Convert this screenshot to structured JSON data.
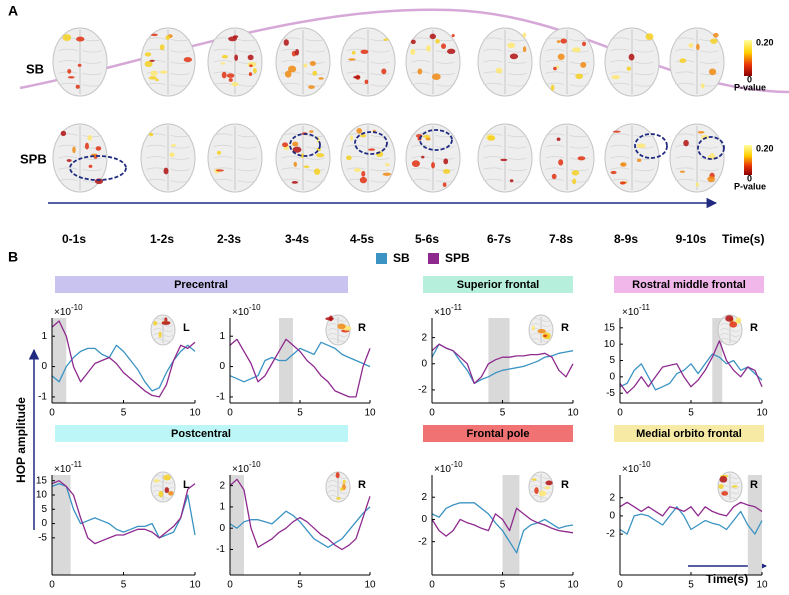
{
  "panel_a": {
    "label": "A",
    "rows": [
      "SB",
      "SPB"
    ],
    "colorbar": {
      "max": "0.20",
      "min": "0",
      "title": "P-value"
    },
    "time_labels": [
      "0-1s",
      "1-2s",
      "2-3s",
      "3-4s",
      "4-5s",
      "5-6s",
      "6-7s",
      "7-8s",
      "8-9s",
      "9-10s"
    ],
    "axis_label": "Time(s)"
  },
  "panel_b": {
    "label": "B",
    "y_label": "HOP amplitude",
    "x_label": "Time(s)",
    "groups": [
      "Precentral",
      "Superior frontal",
      "Rostral middle frontal",
      "Postcentral",
      "Frontal pole",
      "Medial orbito frontal"
    ]
  },
  "chart_data": [
    {
      "type": "line",
      "side": "L",
      "scale_base": "×10",
      "scale_exponent": "-10",
      "highlight": [
        0,
        1
      ],
      "x": [
        0,
        0.5,
        1,
        1.5,
        2,
        2.5,
        3,
        3.5,
        4,
        4.5,
        5,
        5.5,
        6,
        6.5,
        7,
        7.5,
        8,
        8.5,
        9,
        9.5,
        10
      ],
      "xlim": [
        0,
        10
      ],
      "xticks": [
        0,
        5,
        10
      ],
      "ylim": [
        -1.2,
        1.6
      ],
      "yticks": [
        -1,
        0,
        1
      ],
      "series": [
        {
          "name": "SB",
          "color": "#3a93c3",
          "values": [
            -0.3,
            -0.5,
            0,
            0.3,
            0.5,
            0.6,
            0.6,
            0.4,
            0.3,
            0.7,
            0.5,
            0.2,
            -0.1,
            -0.5,
            -0.8,
            -0.7,
            -0.2,
            0.2,
            0.5,
            0.7,
            0.5
          ]
        },
        {
          "name": "SPB",
          "color": "#8e2a8e",
          "values": [
            1.3,
            1.5,
            1.0,
            0,
            -0.5,
            -0.2,
            0.1,
            0.2,
            0.3,
            0.1,
            -0.2,
            -0.4,
            -0.6,
            -0.8,
            -0.95,
            -1.0,
            -0.6,
            0.2,
            0.7,
            0.6,
            0.8
          ]
        }
      ]
    },
    {
      "type": "line",
      "side": "R",
      "scale_base": "×10",
      "scale_exponent": "-10",
      "highlight": [
        3.5,
        4.5
      ],
      "x": [
        0,
        0.5,
        1,
        1.5,
        2,
        2.5,
        3,
        3.5,
        4,
        4.5,
        5,
        5.5,
        6,
        6.5,
        7,
        7.5,
        8,
        8.5,
        9,
        9.5,
        10
      ],
      "xlim": [
        0,
        10
      ],
      "xticks": [
        0,
        5,
        10
      ],
      "ylim": [
        -1.2,
        1.6
      ],
      "yticks": [
        -1,
        0,
        1
      ],
      "series": [
        {
          "color": "#3a93c3",
          "values": [
            -0.3,
            -0.4,
            -0.5,
            -0.4,
            -0.3,
            0.2,
            0.3,
            0.2,
            0.2,
            0.4,
            0.6,
            0.5,
            0.4,
            0.8,
            0.7,
            0.6,
            0.4,
            0.3,
            0.2,
            0.1,
            0
          ]
        },
        {
          "color": "#8e2a8e",
          "values": [
            0.7,
            0.9,
            0.5,
            0.1,
            -0.5,
            -0.3,
            0.1,
            0.5,
            0.9,
            0.7,
            0.5,
            0.2,
            0,
            -0.3,
            -0.5,
            -0.8,
            -0.9,
            -1.0,
            -1.0,
            0,
            0.6
          ]
        }
      ]
    },
    {
      "type": "line",
      "side": "R",
      "scale_base": "×10",
      "scale_exponent": "-11",
      "highlight": [
        4,
        5.5
      ],
      "x": [
        0,
        0.5,
        1,
        1.5,
        2,
        2.5,
        3,
        3.5,
        4,
        4.5,
        5,
        5.5,
        6,
        6.5,
        7,
        7.5,
        8,
        8.5,
        9,
        9.5,
        10
      ],
      "xlim": [
        0,
        10
      ],
      "xticks": [
        0,
        5,
        10
      ],
      "ylim": [
        -3,
        3.5
      ],
      "yticks": [
        -2,
        0,
        2
      ],
      "series": [
        {
          "color": "#3a93c3",
          "values": [
            0.5,
            1.5,
            1.2,
            1,
            0.2,
            -0.5,
            -1.5,
            -1.2,
            -1,
            -0.7,
            -0.5,
            -0.4,
            -0.3,
            -0.2,
            0,
            0.2,
            0.5,
            0.6,
            0.8,
            0.9,
            1
          ]
        },
        {
          "color": "#8e2a8e",
          "values": [
            1,
            1.5,
            1.2,
            1,
            0.5,
            0,
            -1.5,
            -1,
            0,
            0.3,
            0.5,
            0.5,
            0.6,
            0.6,
            0.7,
            0.7,
            0.8,
            0.5,
            -0.5,
            -1,
            0
          ]
        }
      ]
    },
    {
      "type": "line",
      "side": "R",
      "scale_base": "×10",
      "scale_exponent": "-11",
      "highlight": [
        6.5,
        7.2
      ],
      "x": [
        0,
        0.5,
        1,
        1.5,
        2,
        2.5,
        3,
        3.5,
        4,
        4.5,
        5,
        5.5,
        6,
        6.5,
        7,
        7.5,
        8,
        8.5,
        9,
        9.5,
        10
      ],
      "xlim": [
        0,
        10
      ],
      "xticks": [
        0,
        5,
        10
      ],
      "ylim": [
        -8,
        18
      ],
      "yticks": [
        -5,
        0,
        5,
        10,
        15
      ],
      "series": [
        {
          "color": "#3a93c3",
          "values": [
            -3,
            -2,
            2,
            4,
            0,
            -4,
            -3,
            -2,
            1,
            2,
            4,
            1,
            4,
            7,
            6,
            4,
            5,
            2,
            3,
            1,
            -1
          ]
        },
        {
          "color": "#8e2a8e",
          "values": [
            -2,
            -5,
            -3,
            0,
            -3,
            0,
            3,
            3.5,
            4,
            0,
            -3,
            -1,
            2,
            6,
            11,
            5,
            2,
            0,
            3,
            2,
            -3
          ]
        }
      ]
    },
    {
      "type": "line",
      "side": "L",
      "scale_base": "×10",
      "scale_exponent": "-11",
      "highlight": [
        0,
        1.3
      ],
      "x": [
        0,
        0.5,
        1,
        1.5,
        2,
        2.5,
        3,
        3.5,
        4,
        4.5,
        5,
        5.5,
        6,
        6.5,
        7,
        7.5,
        8,
        8.5,
        9,
        9.5,
        10
      ],
      "xlim": [
        0,
        10
      ],
      "xticks": [
        0,
        5,
        10
      ],
      "ylim": [
        -18,
        17
      ],
      "yticks": [
        -5,
        0,
        5,
        10,
        15
      ],
      "series": [
        {
          "color": "#3a93c3",
          "values": [
            13,
            14,
            13,
            5,
            0,
            1,
            2,
            1,
            0,
            -2,
            -3,
            -2,
            -1,
            -1,
            0,
            -5,
            -4,
            -3,
            2,
            10,
            -4
          ]
        },
        {
          "color": "#8e2a8e",
          "values": [
            14,
            15,
            13,
            10,
            2,
            -5,
            -7,
            -6,
            -5,
            -4,
            -4,
            -3,
            -2,
            -2,
            -3,
            -5,
            -3,
            -1,
            2,
            12,
            14
          ]
        }
      ]
    },
    {
      "type": "line",
      "side": "R",
      "scale_base": "×10",
      "scale_exponent": "-10",
      "highlight": [
        0,
        1
      ],
      "x": [
        0,
        0.5,
        1,
        1.5,
        2,
        2.5,
        3,
        3.5,
        4,
        4.5,
        5,
        5.5,
        6,
        6.5,
        7,
        7.5,
        8,
        8.5,
        9,
        9.5,
        10
      ],
      "xlim": [
        0,
        10
      ],
      "xticks": [
        0,
        5,
        10
      ],
      "ylim": [
        -2.2,
        2.5
      ],
      "yticks": [
        -1,
        0,
        1,
        2
      ],
      "series": [
        {
          "color": "#3a93c3",
          "values": [
            0.2,
            0,
            0.3,
            0.4,
            0.4,
            0.3,
            0.2,
            0.5,
            0.8,
            0.6,
            0.3,
            -0.1,
            -0.5,
            -0.7,
            -0.9,
            -0.7,
            -0.5,
            -0.1,
            0.3,
            0.7,
            1
          ]
        },
        {
          "color": "#8e2a8e",
          "values": [
            2,
            2.3,
            1.8,
            0,
            -0.9,
            -0.7,
            -0.5,
            -0.2,
            0,
            0.3,
            0.5,
            0.3,
            0,
            -0.3,
            -0.5,
            -0.8,
            -1,
            -0.8,
            -0.5,
            0.5,
            1.5
          ]
        }
      ]
    },
    {
      "type": "line",
      "side": "R",
      "scale_base": "×10",
      "scale_exponent": "-10",
      "highlight": [
        5,
        6.2
      ],
      "x": [
        0,
        0.5,
        1,
        1.5,
        2,
        2.5,
        3,
        3.5,
        4,
        4.5,
        5,
        5.5,
        6,
        6.5,
        7,
        7.5,
        8,
        8.5,
        9,
        9.5,
        10
      ],
      "xlim": [
        0,
        10
      ],
      "xticks": [
        0,
        5,
        10
      ],
      "ylim": [
        -5,
        4
      ],
      "yticks": [
        -2,
        0,
        2
      ],
      "series": [
        {
          "color": "#3a93c3",
          "values": [
            0.5,
            0.2,
            1,
            1.3,
            1.5,
            1.5,
            1.5,
            1,
            0.5,
            -0.3,
            -1,
            -2,
            -3,
            -1,
            -0.5,
            -0.3,
            0,
            -0.4,
            -0.8,
            -0.6,
            -0.5
          ]
        },
        {
          "color": "#8e2a8e",
          "values": [
            0,
            -1,
            -1.5,
            -1,
            0,
            -0.3,
            -0.5,
            -0.8,
            -1,
            0.5,
            0,
            -1,
            1,
            0.5,
            0,
            -0.3,
            -0.5,
            -0.8,
            -1,
            -1.1,
            -1.2
          ]
        }
      ]
    },
    {
      "type": "line",
      "side": "R",
      "scale_base": "×10",
      "scale_exponent": "-10",
      "highlight": [
        9,
        10
      ],
      "x": [
        0,
        0.5,
        1,
        1.5,
        2,
        2.5,
        3,
        3.5,
        4,
        4.5,
        5,
        5.5,
        6,
        6.5,
        7,
        7.5,
        8,
        8.5,
        9,
        9.5,
        10
      ],
      "xlim": [
        0,
        10
      ],
      "xticks": [
        0,
        5,
        10
      ],
      "ylim": [
        -6.5,
        4.5
      ],
      "yticks": [
        -2,
        0,
        2
      ],
      "series": [
        {
          "color": "#3a93c3",
          "values": [
            -1.5,
            -2,
            0,
            0.2,
            0,
            -0.5,
            -1,
            0,
            1,
            0,
            -1.5,
            -1,
            -0.5,
            -0.8,
            -1,
            -1.5,
            -0.5,
            0.5,
            -1,
            -2,
            -0.5
          ]
        },
        {
          "color": "#8e2a8e",
          "values": [
            1,
            1.5,
            1,
            0.5,
            1,
            0.5,
            0,
            1,
            0.8,
            0.5,
            1,
            0,
            1,
            0.5,
            0.2,
            0,
            1,
            1.5,
            1.2,
            1,
            0.5
          ]
        }
      ]
    }
  ]
}
